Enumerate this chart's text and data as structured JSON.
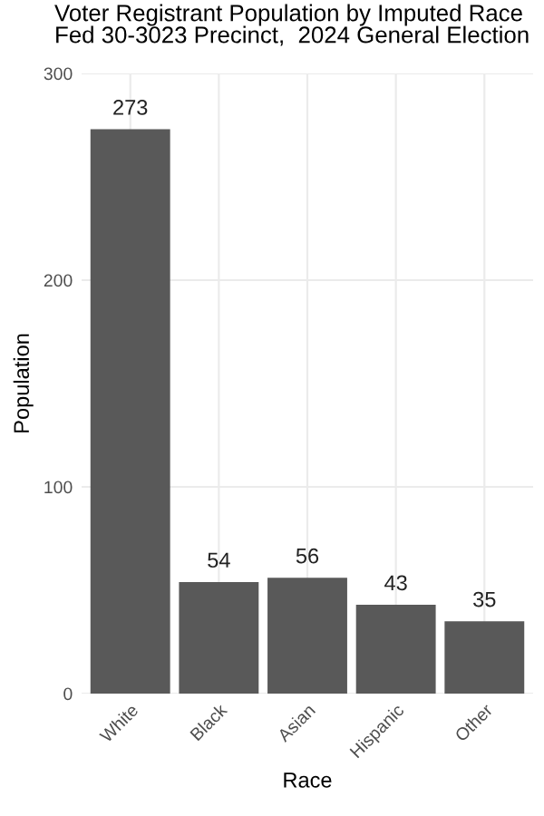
{
  "chart_data": {
    "type": "bar",
    "title": "Voter Registrant Population by Imputed Race\nFed 30-3023 Precinct,  2024 General Election",
    "xlabel": "Race",
    "ylabel": "Population",
    "categories": [
      "White",
      "Black",
      "Asian",
      "Hispanic",
      "Other"
    ],
    "values": [
      273,
      54,
      56,
      43,
      35
    ],
    "color": "#595959",
    "ylim": [
      0,
      300
    ],
    "yticks": [
      0,
      100,
      200,
      300
    ],
    "grid": true,
    "data_labels": true
  }
}
